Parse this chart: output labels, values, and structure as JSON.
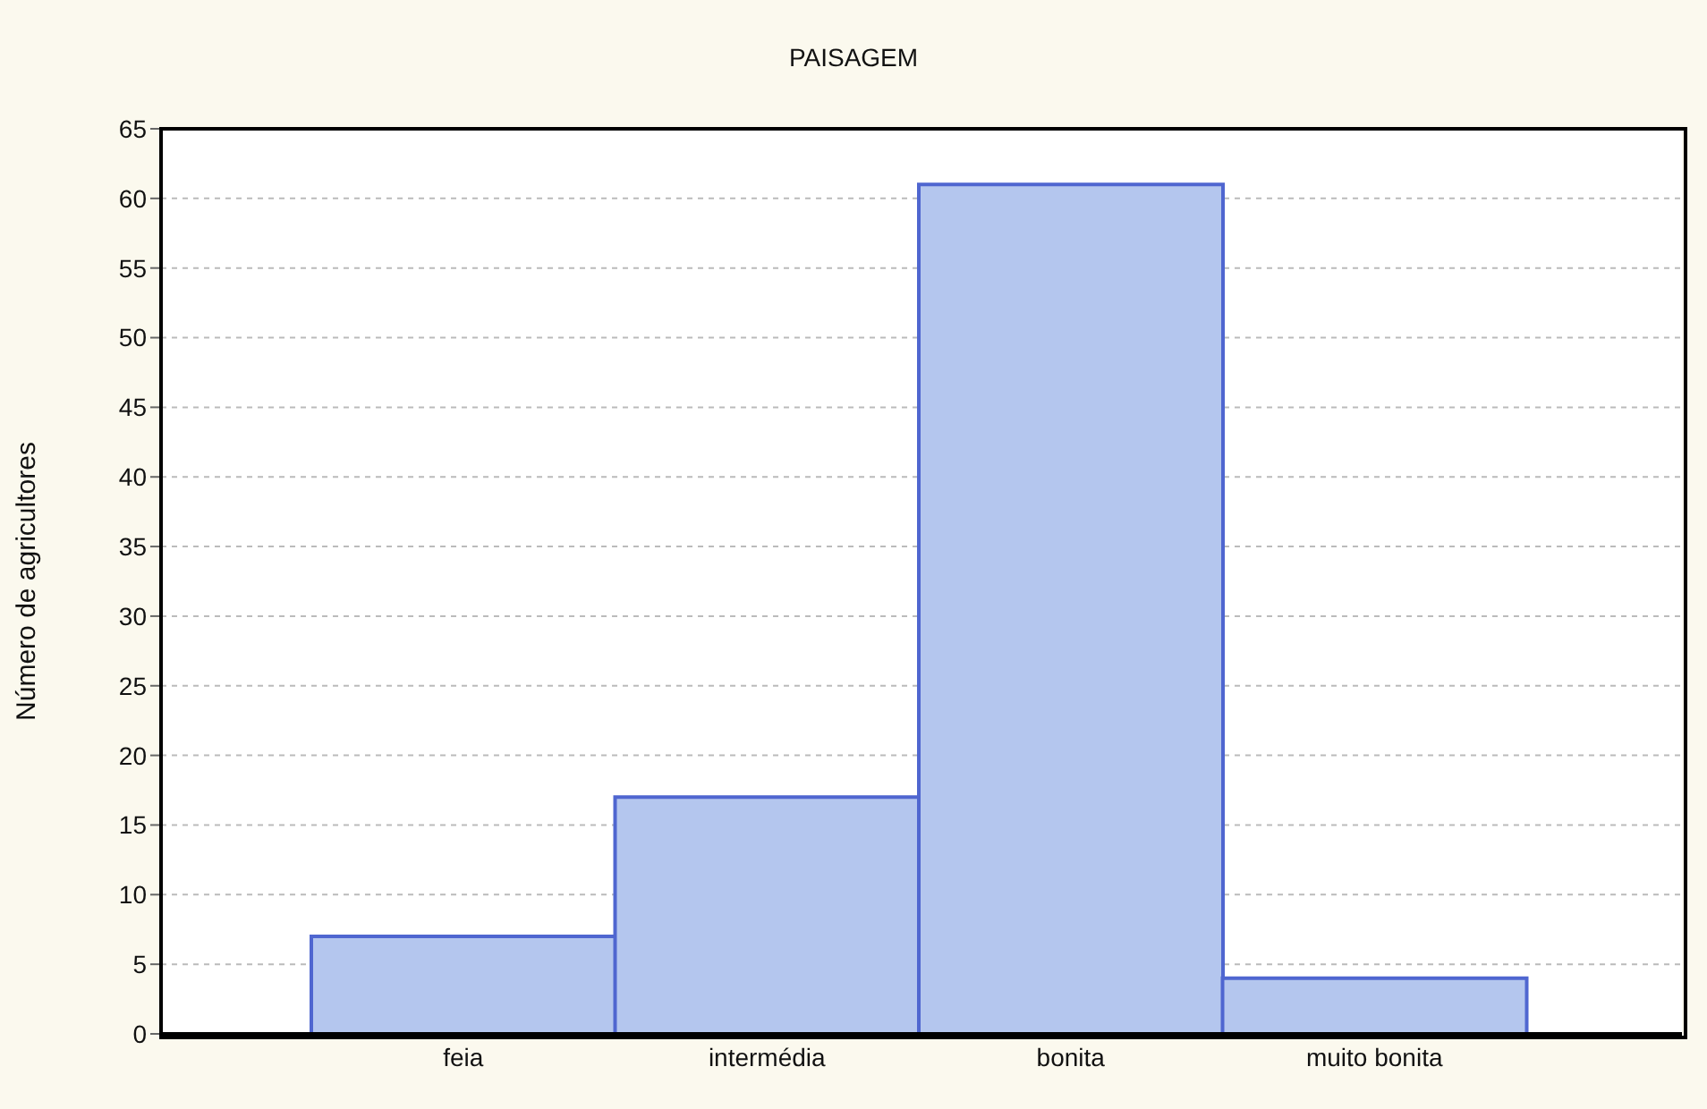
{
  "chart_data": {
    "type": "bar",
    "title": "PAISAGEM",
    "ylabel": "Número de agricultores",
    "categories": [
      "feia",
      "intermédia",
      "bonita",
      "muito bonita"
    ],
    "values": [
      7,
      17,
      61,
      4
    ],
    "color": "#b4c6ee",
    "ylim": [
      0,
      65
    ],
    "yticks": [
      0,
      5,
      10,
      15,
      20,
      25,
      30,
      35,
      40,
      45,
      50,
      55,
      60,
      65
    ],
    "grid": "y"
  }
}
